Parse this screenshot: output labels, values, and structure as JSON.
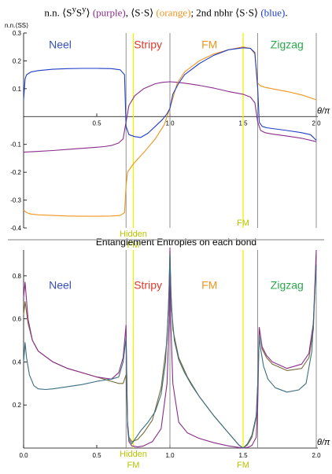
{
  "caption": {
    "part1": "n.n. ⟨S",
    "sup1": "y",
    "part2": "S",
    "sup2": "y",
    "part3": "⟩ ",
    "purple": "(purple)",
    "part4": ", ⟨S·S⟩ ",
    "orange": "(orange)",
    "part5": "; 2nd nbhr ⟨S·S⟩ ",
    "blue": "(blue)",
    "part6": "."
  },
  "colors": {
    "purple": "#8a2d8a",
    "orange": "#f0951e",
    "blue": "#1f3ec8",
    "teal": "#3a6e7e",
    "olive": "#7a6a3a",
    "yellow_line": "#f2f200",
    "phase_line": "#777777",
    "neel": "#3550b8",
    "stripy": "#e03a2a",
    "fm": "#f0951e",
    "zigzag": "#2aa84a",
    "hidden_fm": "#b8c400",
    "separator": "#aaaaaa"
  },
  "chart_data": [
    {
      "type": "line",
      "title": "",
      "ylabel": "n.n.⟨SS⟩",
      "xlabel": "θ/π",
      "xlim": [
        0,
        2.0
      ],
      "ylim": [
        -0.4,
        0.3
      ],
      "xticks": [
        "0.5",
        "1.0",
        "1.5",
        "2.0"
      ],
      "yticks": [
        "0.3",
        "0.2",
        "0.1",
        "-0.1",
        "-0.2",
        "-0.3",
        "-0.4"
      ],
      "phase_boundaries": [
        0.7,
        1.0,
        1.6,
        2.0
      ],
      "special_lines": [
        0.75,
        1.5
      ],
      "region_labels": [
        {
          "text": "Neel",
          "x": 0.25,
          "y": 0.245,
          "color_key": "neel"
        },
        {
          "text": "Stripy",
          "x": 0.85,
          "y": 0.245,
          "color_key": "stripy"
        },
        {
          "text": "FM",
          "x": 1.27,
          "y": 0.245,
          "color_key": "fm"
        },
        {
          "text": "Zigzag",
          "x": 1.8,
          "y": 0.245,
          "color_key": "zigzag"
        }
      ],
      "bottom_labels": [
        {
          "text": "Hidden",
          "x": 0.75,
          "color_key": "hidden_fm"
        },
        {
          "text": "FM",
          "x": 0.75,
          "color_key": "hidden_fm"
        },
        {
          "text": "FM",
          "x": 1.5,
          "color_key": "hidden_fm"
        }
      ],
      "series": [
        {
          "color_key": "purple",
          "x": [
            0.0,
            0.1,
            0.2,
            0.3,
            0.4,
            0.5,
            0.55,
            0.6,
            0.65,
            0.68,
            0.7,
            0.72,
            0.76,
            0.82,
            0.9,
            0.95,
            1.0,
            1.05,
            1.1,
            1.2,
            1.3,
            1.4,
            1.5,
            1.55,
            1.58,
            1.6,
            1.62,
            1.65,
            1.7,
            1.8,
            1.9,
            2.0
          ],
          "y": [
            -0.128,
            -0.125,
            -0.122,
            -0.118,
            -0.114,
            -0.11,
            -0.108,
            -0.104,
            -0.095,
            -0.08,
            -0.02,
            0.04,
            0.075,
            0.1,
            0.118,
            0.123,
            0.125,
            0.123,
            0.12,
            0.112,
            0.102,
            0.09,
            0.08,
            0.07,
            0.05,
            -0.02,
            -0.05,
            -0.058,
            -0.063,
            -0.07,
            -0.078,
            -0.09
          ]
        },
        {
          "color_key": "orange",
          "x": [
            0.0,
            0.02,
            0.05,
            0.1,
            0.2,
            0.3,
            0.4,
            0.5,
            0.6,
            0.66,
            0.69,
            0.7,
            0.71,
            0.75,
            0.82,
            0.9,
            0.96,
            1.0,
            1.05,
            1.1,
            1.2,
            1.3,
            1.4,
            1.5,
            1.55,
            1.58,
            1.6,
            1.62,
            1.65,
            1.7,
            1.8,
            1.9,
            2.0
          ],
          "y": [
            -0.335,
            -0.345,
            -0.35,
            -0.353,
            -0.355,
            -0.357,
            -0.358,
            -0.358,
            -0.357,
            -0.355,
            -0.345,
            -0.25,
            -0.2,
            -0.17,
            -0.13,
            -0.08,
            -0.03,
            0.03,
            0.12,
            0.16,
            0.2,
            0.225,
            0.24,
            0.25,
            0.245,
            0.225,
            0.12,
            0.11,
            0.105,
            0.1,
            0.09,
            0.078,
            0.06
          ]
        },
        {
          "color_key": "blue",
          "x": [
            0.0,
            0.01,
            0.02,
            0.05,
            0.1,
            0.2,
            0.3,
            0.4,
            0.5,
            0.6,
            0.66,
            0.69,
            0.7,
            0.72,
            0.76,
            0.8,
            0.85,
            0.9,
            0.95,
            0.98,
            1.0,
            1.02,
            1.06,
            1.1,
            1.2,
            1.3,
            1.4,
            1.5,
            1.55,
            1.58,
            1.6,
            1.61,
            1.63,
            1.66,
            1.7,
            1.8,
            1.9,
            1.96,
            2.0
          ],
          "y": [
            0.06,
            0.135,
            0.15,
            0.16,
            0.165,
            0.17,
            0.172,
            0.173,
            0.173,
            0.172,
            0.168,
            0.15,
            -0.035,
            -0.065,
            -0.072,
            -0.075,
            -0.06,
            -0.035,
            -0.01,
            0.01,
            0.03,
            0.08,
            0.12,
            0.15,
            0.19,
            0.22,
            0.24,
            0.247,
            0.245,
            0.23,
            0.1,
            -0.02,
            -0.035,
            -0.04,
            -0.043,
            -0.05,
            -0.058,
            -0.065,
            -0.085
          ]
        }
      ]
    },
    {
      "type": "line",
      "title": "Entanglement Entropies on each bond",
      "xlabel": "θ/π",
      "xlim": [
        0,
        2.0
      ],
      "ylim": [
        0,
        0.92
      ],
      "xticks": [
        "0.0",
        "0.5",
        "1.0",
        "1.5",
        "2.0"
      ],
      "yticks": [
        "0.8",
        "0.6",
        "0.4",
        "0.2"
      ],
      "phase_boundaries": [
        0.7,
        1.0,
        1.6,
        2.0
      ],
      "special_lines": [
        0.75,
        1.5
      ],
      "region_labels": [
        {
          "text": "Neel",
          "x": 0.25,
          "y": 0.74,
          "color_key": "neel"
        },
        {
          "text": "Stripy",
          "x": 0.85,
          "y": 0.74,
          "color_key": "stripy"
        },
        {
          "text": "FM",
          "x": 1.27,
          "y": 0.74,
          "color_key": "fm"
        },
        {
          "text": "Zigzag",
          "x": 1.8,
          "y": 0.74,
          "color_key": "zigzag"
        }
      ],
      "bottom_labels": [
        {
          "text": "Hidden",
          "x": 0.75,
          "color_key": "hidden_fm"
        },
        {
          "text": "FM",
          "x": 0.75,
          "color_key": "hidden_fm"
        },
        {
          "text": "FM",
          "x": 1.5,
          "color_key": "hidden_fm"
        }
      ],
      "series": [
        {
          "color_key": "olive",
          "x": [
            0.0,
            0.01,
            0.03,
            0.06,
            0.1,
            0.2,
            0.3,
            0.4,
            0.5,
            0.6,
            0.65,
            0.68,
            0.7,
            0.71,
            0.72,
            0.74,
            0.78,
            0.82,
            0.88,
            0.94,
            0.98,
            0.995,
            1.0,
            1.005,
            1.02,
            1.06,
            1.12,
            1.2,
            1.3,
            1.4,
            1.47,
            1.5,
            1.53,
            1.56,
            1.59,
            1.6,
            1.61,
            1.63,
            1.66,
            1.7,
            1.8,
            1.9,
            1.95,
            1.98,
            2.0
          ],
          "y": [
            0.62,
            0.68,
            0.58,
            0.5,
            0.45,
            0.4,
            0.37,
            0.35,
            0.33,
            0.31,
            0.3,
            0.3,
            0.34,
            0.12,
            0.05,
            0.03,
            0.04,
            0.07,
            0.13,
            0.28,
            0.5,
            0.75,
            0.92,
            0.75,
            0.55,
            0.42,
            0.33,
            0.24,
            0.15,
            0.07,
            0.015,
            0.0,
            0.015,
            0.05,
            0.14,
            0.3,
            0.56,
            0.46,
            0.42,
            0.39,
            0.36,
            0.37,
            0.42,
            0.55,
            0.9
          ]
        },
        {
          "color_key": "purple",
          "x": [
            0.0,
            0.01,
            0.03,
            0.06,
            0.1,
            0.2,
            0.3,
            0.4,
            0.5,
            0.6,
            0.65,
            0.68,
            0.7,
            0.71,
            0.72,
            0.74,
            0.78,
            0.82,
            0.88,
            0.94,
            0.98,
            0.995,
            1.0,
            1.005,
            1.02,
            1.06,
            1.12,
            1.2,
            1.3,
            1.4,
            1.47,
            1.5,
            1.53,
            1.56,
            1.59,
            1.6,
            1.61,
            1.63,
            1.66,
            1.7,
            1.8,
            1.9,
            1.95,
            1.98,
            2.0
          ],
          "y": [
            0.7,
            0.77,
            0.6,
            0.5,
            0.45,
            0.4,
            0.37,
            0.35,
            0.33,
            0.32,
            0.35,
            0.42,
            0.57,
            0.1,
            0.03,
            0.01,
            0.005,
            0.01,
            0.03,
            0.09,
            0.3,
            0.6,
            0.93,
            0.6,
            0.3,
            0.12,
            0.07,
            0.045,
            0.025,
            0.01,
            0.003,
            0.0,
            0.003,
            0.012,
            0.05,
            0.2,
            0.56,
            0.47,
            0.43,
            0.4,
            0.37,
            0.39,
            0.44,
            0.58,
            0.92
          ]
        },
        {
          "color_key": "teal",
          "x": [
            0.0,
            0.01,
            0.02,
            0.04,
            0.07,
            0.1,
            0.15,
            0.2,
            0.3,
            0.4,
            0.5,
            0.6,
            0.65,
            0.68,
            0.7,
            0.71,
            0.72,
            0.74,
            0.77,
            0.8,
            0.85,
            0.9,
            0.94,
            0.97,
            0.99,
            1.0,
            1.01,
            1.03,
            1.06,
            1.1,
            1.15,
            1.2,
            1.3,
            1.4,
            1.47,
            1.5,
            1.53,
            1.56,
            1.59,
            1.6,
            1.61,
            1.62,
            1.64,
            1.67,
            1.72,
            1.8,
            1.88,
            1.93,
            1.97,
            2.0
          ],
          "y": [
            0.4,
            0.49,
            0.42,
            0.34,
            0.29,
            0.275,
            0.272,
            0.275,
            0.285,
            0.295,
            0.31,
            0.32,
            0.33,
            0.4,
            0.51,
            0.12,
            0.04,
            0.02,
            0.05,
            0.08,
            0.12,
            0.17,
            0.25,
            0.4,
            0.65,
            0.9,
            0.65,
            0.5,
            0.41,
            0.35,
            0.29,
            0.24,
            0.15,
            0.07,
            0.015,
            0.0,
            0.02,
            0.06,
            0.15,
            0.3,
            0.52,
            0.46,
            0.38,
            0.32,
            0.28,
            0.26,
            0.27,
            0.3,
            0.45,
            0.85
          ]
        }
      ]
    }
  ]
}
